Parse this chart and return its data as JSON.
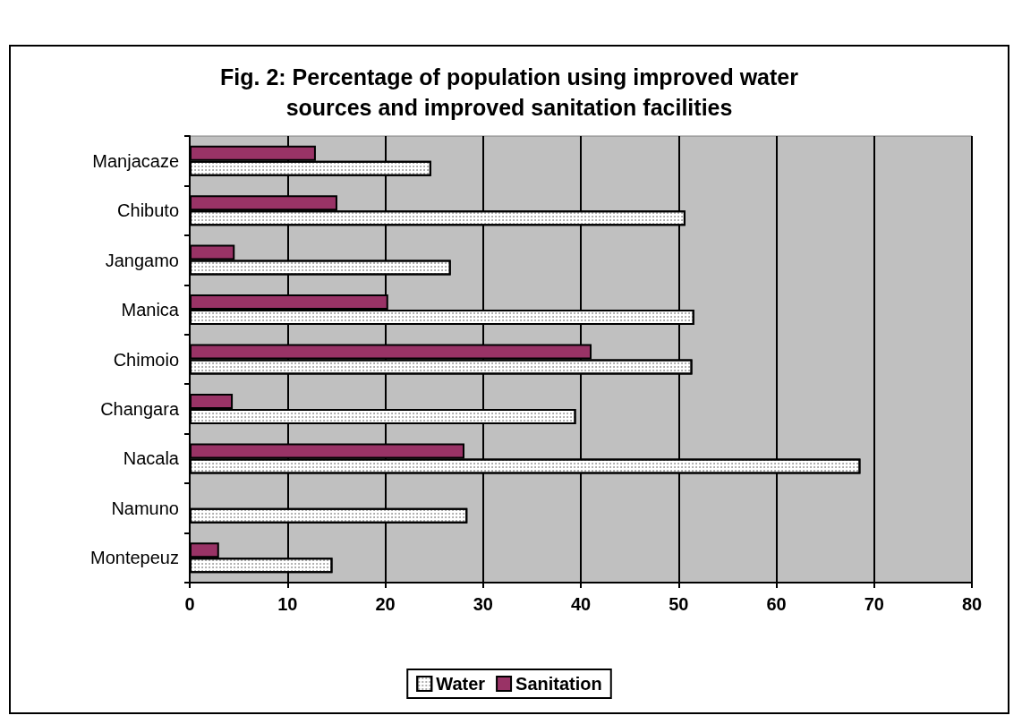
{
  "chart_data": {
    "type": "bar",
    "orientation": "horizontal",
    "title": "Fig. 2: Percentage of population using improved water\nsources and improved sanitation facilities",
    "categories": [
      "Manjacaze",
      "Chibuto",
      "Jangamo",
      "Manica",
      "Chimoio",
      "Changara",
      "Nacala",
      "Namuno",
      "Montepeuz"
    ],
    "series": [
      {
        "name": "Water",
        "color": "#ffffff",
        "values": [
          24.7,
          50.7,
          26.7,
          51.6,
          51.4,
          39.5,
          68.6,
          28.4,
          14.6
        ]
      },
      {
        "name": "Sanitation",
        "color": "#993366",
        "values": [
          12.9,
          15.1,
          4.6,
          20.3,
          41.1,
          4.4,
          28.1,
          null,
          3.0
        ]
      }
    ],
    "xlim": [
      0,
      80
    ],
    "xticks": [
      0,
      10,
      20,
      30,
      40,
      50,
      60,
      70,
      80
    ],
    "grid": "x",
    "legend": "bottom"
  }
}
